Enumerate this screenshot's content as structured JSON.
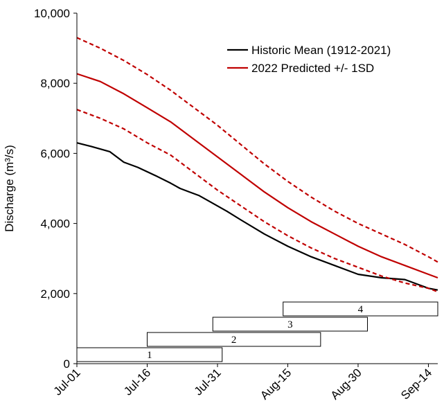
{
  "chart_data": {
    "type": "line",
    "ylabel": "Discharge (m³/s)",
    "ylim": [
      0,
      10000
    ],
    "yticks": [
      0,
      2000,
      4000,
      6000,
      8000,
      10000
    ],
    "ytick_labels": [
      "0",
      "2,000",
      "4,000",
      "6,000",
      "8,000",
      "10,000"
    ],
    "xlim": [
      0,
      77
    ],
    "xticks": [
      0,
      15,
      30,
      45,
      60,
      75
    ],
    "xtick_labels": [
      "Jul-01",
      "Jul-16",
      "Jul-31",
      "Aug-15",
      "Aug-30",
      "Sep-14"
    ],
    "grid": false,
    "legend_position": "top-right",
    "series": [
      {
        "name": "Historic Mean (1912-2021)",
        "color": "#000000",
        "style": "solid",
        "x": [
          0,
          3,
          7,
          10,
          13,
          17,
          20,
          22,
          24,
          26,
          28,
          30,
          32,
          35,
          40,
          45,
          50,
          55,
          60,
          65,
          70,
          73,
          75,
          77
        ],
        "y": [
          6300,
          6200,
          6050,
          5750,
          5600,
          5350,
          5150,
          5000,
          4900,
          4800,
          4650,
          4500,
          4350,
          4100,
          3700,
          3350,
          3050,
          2800,
          2550,
          2450,
          2400,
          2250,
          2150,
          2100
        ]
      },
      {
        "name": "2022 Predicted +/- 1SD",
        "color": "#c00000",
        "style": "solid",
        "x": [
          0,
          5,
          10,
          15,
          20,
          25,
          30,
          35,
          40,
          45,
          50,
          55,
          60,
          65,
          70,
          75,
          77
        ],
        "y": [
          8270,
          8050,
          7700,
          7300,
          6900,
          6400,
          5900,
          5400,
          4900,
          4450,
          4050,
          3700,
          3350,
          3050,
          2800,
          2550,
          2450
        ]
      },
      {
        "name": "",
        "color": "#c00000",
        "style": "dashed",
        "x": [
          0,
          5,
          10,
          15,
          20,
          25,
          30,
          35,
          40,
          45,
          50,
          55,
          60,
          65,
          70,
          75,
          77
        ],
        "y": [
          9300,
          9000,
          8650,
          8250,
          7800,
          7300,
          6800,
          6250,
          5700,
          5200,
          4750,
          4350,
          4000,
          3700,
          3400,
          3050,
          2900
        ]
      },
      {
        "name": "",
        "color": "#c00000",
        "style": "dashed",
        "x": [
          0,
          5,
          10,
          15,
          20,
          25,
          30,
          35,
          40,
          45,
          50,
          55,
          60,
          65,
          70,
          75,
          77
        ],
        "y": [
          7250,
          7000,
          6700,
          6300,
          5950,
          5450,
          4950,
          4500,
          4050,
          3650,
          3300,
          3000,
          2750,
          2500,
          2300,
          2150,
          2050
        ]
      }
    ],
    "periods": [
      {
        "label": "1",
        "start": 0,
        "end": 31
      },
      {
        "label": "2",
        "start": 15,
        "end": 52
      },
      {
        "label": "3",
        "start": 29,
        "end": 62
      },
      {
        "label": "4",
        "start": 44,
        "end": 77
      }
    ]
  }
}
